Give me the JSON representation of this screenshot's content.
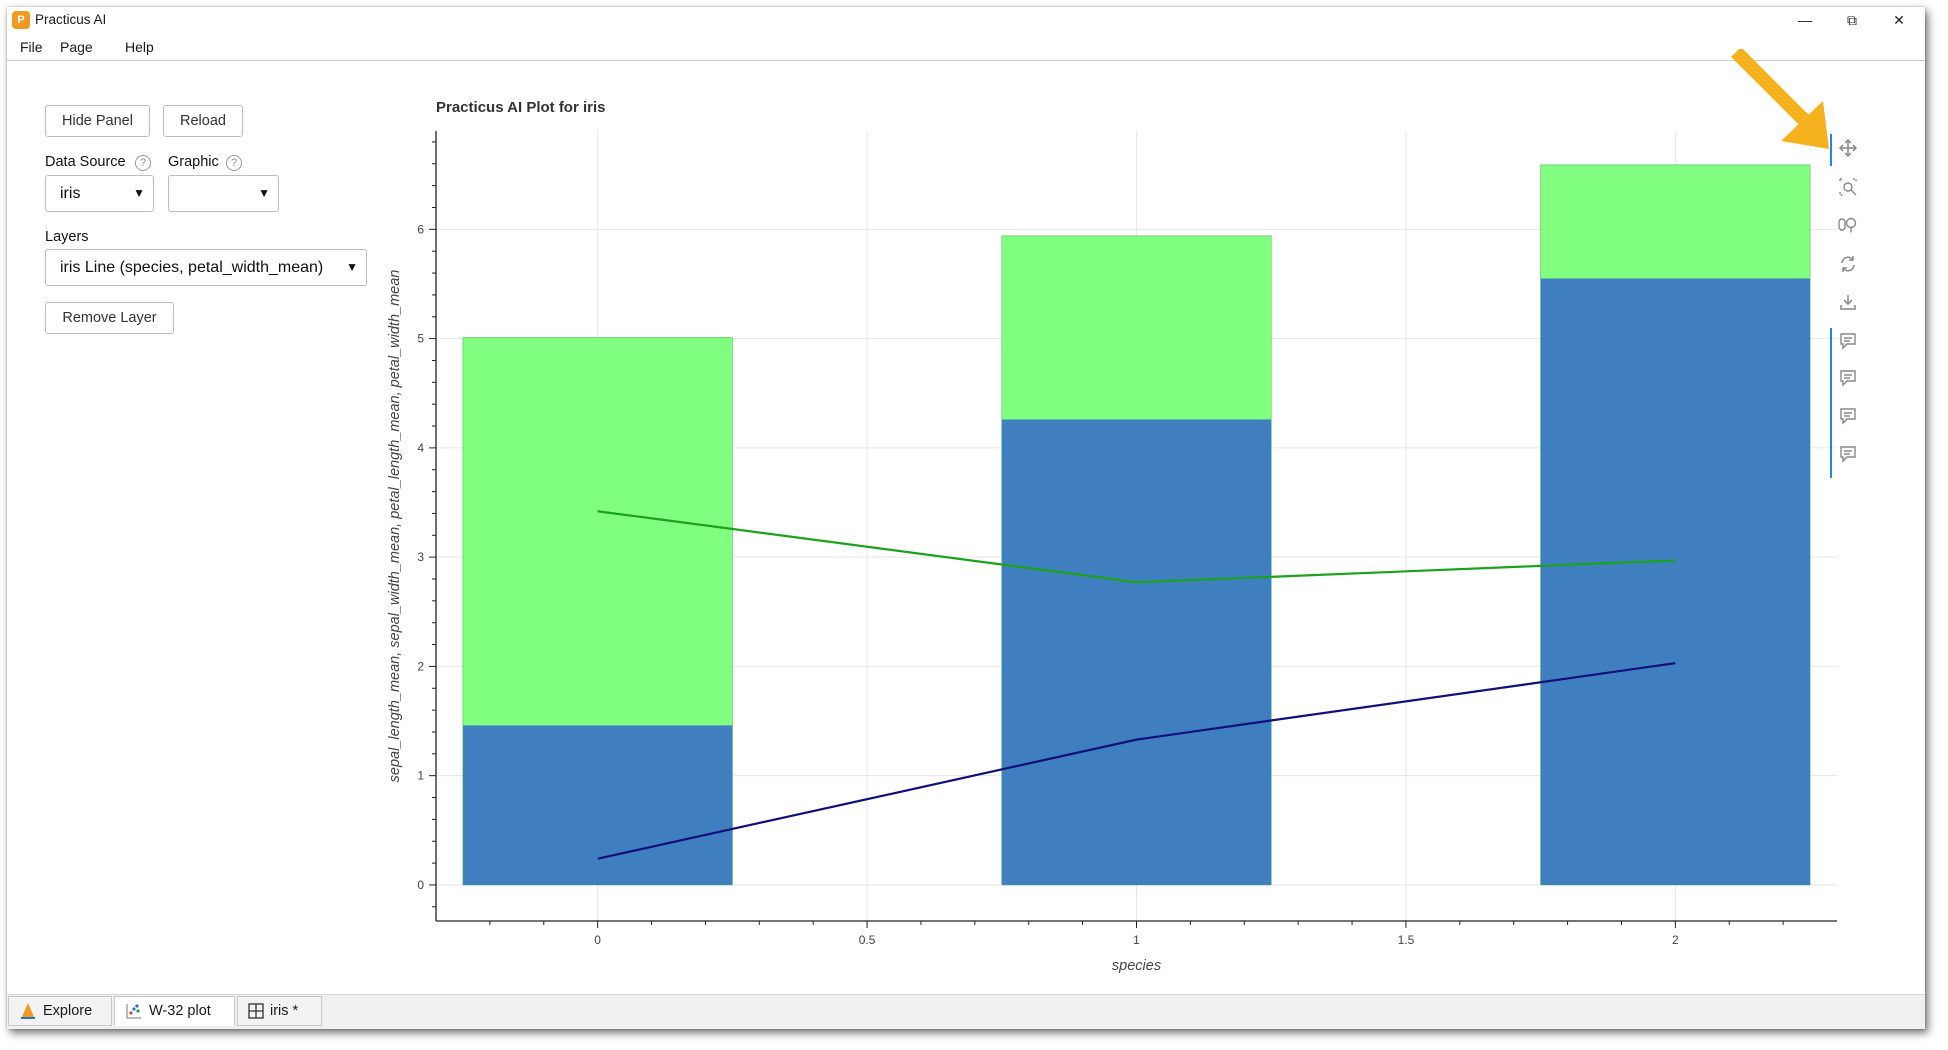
{
  "window": {
    "title": "Practicus AI",
    "minimize": "—",
    "maximize": "⧉",
    "close": "✕"
  },
  "menu": [
    "File",
    "Page",
    "Help"
  ],
  "panel": {
    "hide_panel": "Hide Panel",
    "reload": "Reload",
    "data_source_label": "Data Source",
    "data_source_value": "iris",
    "graphic_label": "Graphic",
    "graphic_value": "",
    "layers_label": "Layers",
    "layers_value": "iris Line (species, petal_width_mean)",
    "remove_layer": "Remove Layer",
    "help_glyph": "?"
  },
  "toolbar_icons": [
    "pan-icon",
    "box-zoom-icon",
    "wheel-zoom-icon",
    "reset-icon",
    "save-icon",
    "hover-icon",
    "hover-icon",
    "hover-icon",
    "hover-icon"
  ],
  "tabs": [
    {
      "label": "Explore",
      "icon": "explore-icon"
    },
    {
      "label": "W-32 plot",
      "icon": "plot-icon"
    },
    {
      "label": "iris *",
      "icon": "grid-icon"
    }
  ],
  "colors": {
    "bar_blue": "#3f7fc0",
    "bar_green": "#80ff80",
    "line_green": "#1aa31a",
    "line_navy": "#10107a",
    "arrow": "#f5b21e"
  },
  "chart_data": {
    "type": "bar",
    "title": "Practicus AI Plot for iris",
    "xlabel": "species",
    "ylabel": "sepal_length_mean, sepal_width_mean, petal_length_mean, petal_width_mean",
    "x": [
      0,
      1,
      2
    ],
    "xlim": [
      -0.3,
      2.3
    ],
    "ylim": [
      -0.33,
      6.9
    ],
    "x_ticks": [
      "0",
      "0.5",
      "1",
      "1.5",
      "2"
    ],
    "y_ticks": [
      "0",
      "1",
      "2",
      "3",
      "4",
      "5",
      "6"
    ],
    "grid": true,
    "series": [
      {
        "type": "bar",
        "color": "#3f7fc0",
        "values": [
          1.46,
          4.26,
          5.55
        ]
      },
      {
        "type": "bar",
        "color": "#80ff80",
        "values": [
          5.01,
          5.94,
          6.59
        ]
      },
      {
        "type": "line",
        "color": "#1aa31a",
        "values": [
          3.42,
          2.77,
          2.97
        ]
      },
      {
        "type": "line",
        "color": "#10107a",
        "values": [
          0.24,
          1.33,
          2.03
        ]
      }
    ]
  }
}
